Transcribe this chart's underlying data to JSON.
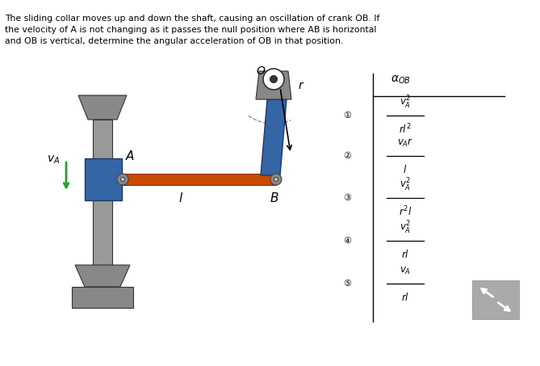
{
  "bg_color": "#ffffff",
  "text_color": "#000000",
  "title_text": "The sliding collar moves up and down the shaft, causing an oscillation of crank OB. If\nthe velocity of A is not changing as it passes the null position where AB is horizontal\nand OB is vertical, determine the angular acceleration of OB in that position.",
  "options": [
    {
      "num": "1",
      "numer": "$v_A^2$",
      "denom": "$rl^2$"
    },
    {
      "num": "2",
      "numer": "$v_Ar$",
      "denom": "$l$"
    },
    {
      "num": "3",
      "numer": "$v_A^2$",
      "denom": "$r^2l$"
    },
    {
      "num": "4",
      "numer": "$v_A^2$",
      "denom": "$rl$"
    },
    {
      "num": "5",
      "numer": "$v_A$",
      "denom": "$rl$"
    }
  ],
  "alpha_OB_label": "$\\alpha_{OB}$",
  "gray_color": "#808080",
  "dark_gray": "#555555",
  "blue_color": "#1a5fb4",
  "orange_color": "#c84b00",
  "green_color": "#2ca02c",
  "light_gray": "#aaaaaa"
}
